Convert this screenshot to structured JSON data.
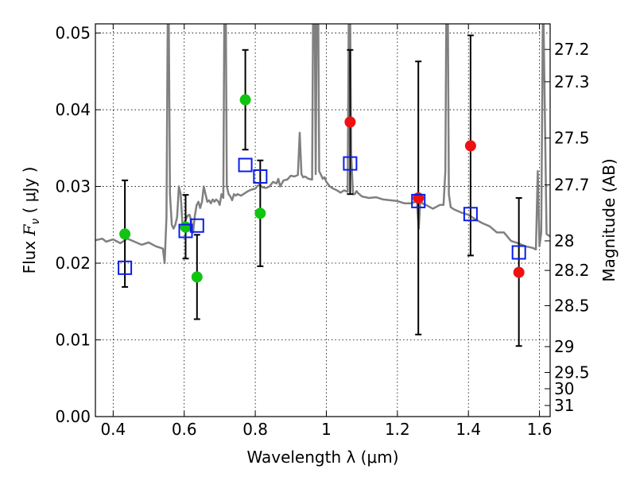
{
  "chart_data": {
    "type": "scatter",
    "xlabel": "Wavelength  λ (μm)",
    "ylabel_prefix": "Flux  ",
    "ylabel_var": "F",
    "ylabel_sub": "ν",
    "ylabel_suffix": "  ( μJy )",
    "y2label": "Magnitude (AB)",
    "xlim": [
      0.35,
      1.63
    ],
    "ylim": [
      0.0,
      0.0512
    ],
    "grid": true,
    "x_ticks": [
      {
        "value": 0.4,
        "label": "0.4"
      },
      {
        "value": 0.6,
        "label": "0.6"
      },
      {
        "value": 0.8,
        "label": "0.8"
      },
      {
        "value": 1.0,
        "label": "1"
      },
      {
        "value": 1.2,
        "label": "1.2"
      },
      {
        "value": 1.4,
        "label": "1.4"
      },
      {
        "value": 1.6,
        "label": "1.6"
      }
    ],
    "y_ticks": [
      {
        "value": 0.0,
        "label": "0.00"
      },
      {
        "value": 0.01,
        "label": "0.01"
      },
      {
        "value": 0.02,
        "label": "0.02"
      },
      {
        "value": 0.03,
        "label": "0.03"
      },
      {
        "value": 0.04,
        "label": "0.04"
      },
      {
        "value": 0.05,
        "label": "0.05"
      }
    ],
    "y2_ticks": [
      {
        "mag": 27.2,
        "label": "27.2"
      },
      {
        "mag": 27.3,
        "label": "27.3"
      },
      {
        "mag": 27.5,
        "label": "27.5"
      },
      {
        "mag": 27.7,
        "label": "27.7"
      },
      {
        "mag": 28.0,
        "label": "28"
      },
      {
        "mag": 28.2,
        "label": "28.2"
      },
      {
        "mag": 28.5,
        "label": "28.5"
      },
      {
        "mag": 29.0,
        "label": "29"
      },
      {
        "mag": 29.5,
        "label": "29.5"
      },
      {
        "mag": 30.0,
        "label": "30"
      },
      {
        "mag": 31.0,
        "label": "31"
      }
    ],
    "model_spectrum": {
      "color": "#808080",
      "x": [
        0.35,
        0.37,
        0.38,
        0.4,
        0.42,
        0.44,
        0.46,
        0.48,
        0.5,
        0.52,
        0.54,
        0.545,
        0.55,
        0.555,
        0.56,
        0.565,
        0.57,
        0.575,
        0.58,
        0.585,
        0.59,
        0.595,
        0.6,
        0.605,
        0.61,
        0.615,
        0.62,
        0.625,
        0.63,
        0.635,
        0.64,
        0.645,
        0.65,
        0.655,
        0.66,
        0.665,
        0.67,
        0.675,
        0.68,
        0.685,
        0.69,
        0.695,
        0.7,
        0.705,
        0.71,
        0.715,
        0.72,
        0.725,
        0.73,
        0.735,
        0.74,
        0.745,
        0.75,
        0.76,
        0.77,
        0.78,
        0.79,
        0.8,
        0.805,
        0.81,
        0.815,
        0.82,
        0.83,
        0.84,
        0.85,
        0.86,
        0.865,
        0.87,
        0.88,
        0.89,
        0.9,
        0.91,
        0.92,
        0.925,
        0.93,
        0.935,
        0.94,
        0.95,
        0.96,
        0.965,
        0.97,
        0.975,
        0.98,
        0.985,
        0.99,
        0.995,
        1.0,
        1.01,
        1.02,
        1.03,
        1.04,
        1.05,
        1.06,
        1.065,
        1.07,
        1.075,
        1.08,
        1.085,
        1.09,
        1.1,
        1.12,
        1.14,
        1.16,
        1.18,
        1.2,
        1.22,
        1.24,
        1.25,
        1.255,
        1.26,
        1.265,
        1.27,
        1.28,
        1.3,
        1.32,
        1.33,
        1.335,
        1.34,
        1.345,
        1.35,
        1.36,
        1.38,
        1.4,
        1.42,
        1.44,
        1.46,
        1.48,
        1.5,
        1.52,
        1.54,
        1.56,
        1.58,
        1.59,
        1.595,
        1.6,
        1.605,
        1.61,
        1.62,
        1.63
      ],
      "y": [
        0.023,
        0.0232,
        0.0228,
        0.0231,
        0.0226,
        0.0232,
        0.0228,
        0.0224,
        0.0227,
        0.0222,
        0.0219,
        0.02,
        0.026,
        0.062,
        0.029,
        0.025,
        0.0245,
        0.025,
        0.026,
        0.03,
        0.029,
        0.025,
        0.0252,
        0.0258,
        0.0262,
        0.0263,
        0.0255,
        0.024,
        0.0262,
        0.0276,
        0.028,
        0.0272,
        0.028,
        0.03,
        0.029,
        0.028,
        0.0282,
        0.0278,
        0.0283,
        0.028,
        0.0283,
        0.0281,
        0.0276,
        0.029,
        0.0285,
        0.07,
        0.03,
        0.029,
        0.0287,
        0.0282,
        0.029,
        0.0288,
        0.029,
        0.0288,
        0.0291,
        0.0294,
        0.0296,
        0.0297,
        0.03,
        0.0302,
        0.0301,
        0.0299,
        0.0298,
        0.03,
        0.0306,
        0.0304,
        0.031,
        0.03,
        0.0308,
        0.0309,
        0.0314,
        0.0313,
        0.0315,
        0.037,
        0.0316,
        0.0312,
        0.0313,
        0.031,
        0.0309,
        0.07,
        0.0316,
        0.07,
        0.032,
        0.0315,
        0.031,
        0.0312,
        0.0306,
        0.03,
        0.0297,
        0.0295,
        0.0292,
        0.0295,
        0.0293,
        0.065,
        0.034,
        0.029,
        0.029,
        0.0294,
        0.0291,
        0.0287,
        0.0285,
        0.0286,
        0.0283,
        0.0282,
        0.0281,
        0.0278,
        0.0278,
        0.028,
        0.028,
        0.0245,
        0.0285,
        0.0278,
        0.0276,
        0.0271,
        0.0276,
        0.0276,
        0.032,
        0.07,
        0.029,
        0.0273,
        0.027,
        0.0266,
        0.0263,
        0.0257,
        0.0252,
        0.0248,
        0.024,
        0.024,
        0.0229,
        0.0226,
        0.0222,
        0.022,
        0.0218,
        0.032,
        0.0222,
        0.024,
        0.056,
        0.0238,
        0.0235
      ]
    },
    "series": [
      {
        "color": "#11c411",
        "marker": "circle",
        "points": [
          {
            "x": 0.433,
            "y": 0.0238,
            "err_lo": 0.0169,
            "err_hi": 0.0308
          },
          {
            "x": 0.604,
            "y": 0.0247,
            "err_lo": 0.0206,
            "err_hi": 0.0289
          },
          {
            "x": 0.636,
            "y": 0.0182,
            "err_lo": 0.0127,
            "err_hi": 0.0237
          },
          {
            "x": 0.772,
            "y": 0.0413,
            "err_lo": 0.0348,
            "err_hi": 0.0478
          },
          {
            "x": 0.814,
            "y": 0.0265,
            "err_lo": 0.0196,
            "err_hi": 0.0334
          }
        ]
      },
      {
        "color": "#ee1111",
        "marker": "circle",
        "points": [
          {
            "x": 1.067,
            "y": 0.0384,
            "err_lo": 0.029,
            "err_hi": 0.0478
          },
          {
            "x": 1.259,
            "y": 0.0285,
            "err_lo": 0.0107,
            "err_hi": 0.0463
          },
          {
            "x": 1.406,
            "y": 0.0353,
            "err_lo": 0.021,
            "err_hi": 0.0497
          },
          {
            "x": 1.542,
            "y": 0.0188,
            "err_lo": 0.0092,
            "err_hi": 0.0285
          }
        ]
      },
      {
        "color": "#0b1ee8",
        "marker": "open-square",
        "points": [
          {
            "x": 0.433,
            "y": 0.0194
          },
          {
            "x": 0.604,
            "y": 0.0242
          },
          {
            "x": 0.636,
            "y": 0.0249
          },
          {
            "x": 0.772,
            "y": 0.0328
          },
          {
            "x": 0.814,
            "y": 0.0313
          },
          {
            "x": 1.067,
            "y": 0.033
          },
          {
            "x": 1.259,
            "y": 0.0281
          },
          {
            "x": 1.406,
            "y": 0.0264
          },
          {
            "x": 1.542,
            "y": 0.0214
          }
        ]
      }
    ]
  }
}
